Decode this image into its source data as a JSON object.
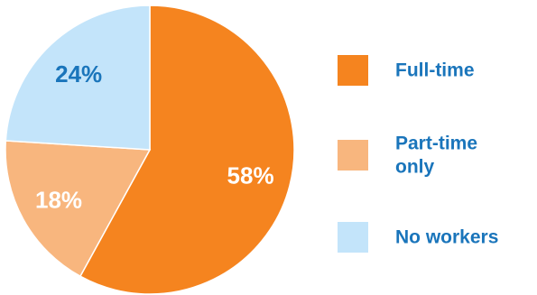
{
  "chart_data": {
    "type": "pie",
    "title": "",
    "start": "12 o'clock",
    "direction": "clockwise",
    "legend_position": "right",
    "slices": [
      {
        "label": "Full-time",
        "legend_lines": [
          "Full-time"
        ],
        "value": 58,
        "display": "58%",
        "color": "#f5841f",
        "label_color": "#ffffff"
      },
      {
        "label": "Part-time only",
        "legend_lines": [
          "Part-time",
          "only"
        ],
        "value": 18,
        "display": "18%",
        "color": "#f8b67e",
        "label_color": "#ffffff"
      },
      {
        "label": "No workers",
        "legend_lines": [
          "No workers"
        ],
        "value": 24,
        "display": "24%",
        "color": "#c3e4fa",
        "label_color": "#1a75bb"
      }
    ],
    "legend_text_color": "#1a75bb",
    "border_color": "#ffffff"
  }
}
